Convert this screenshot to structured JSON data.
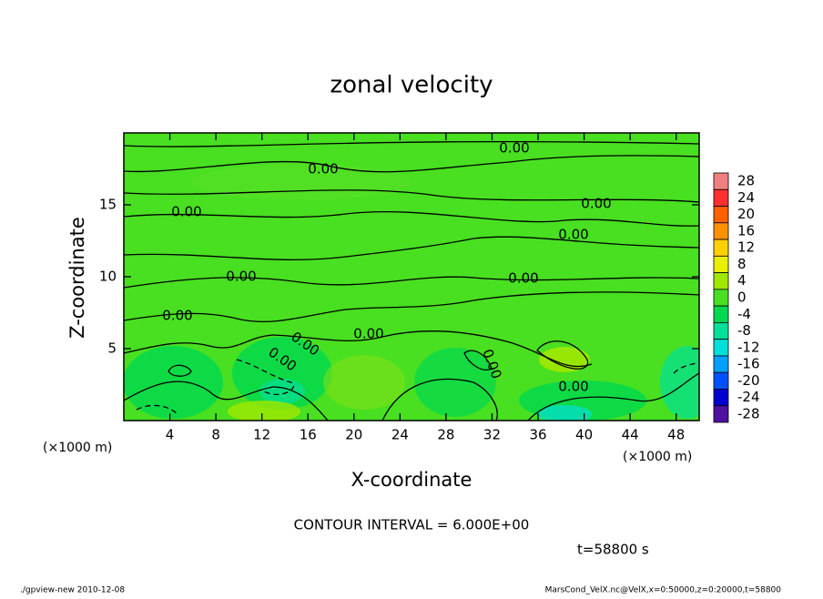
{
  "chart_data": {
    "type": "contour",
    "title": "zonal velocity",
    "xlabel": "X-coordinate",
    "ylabel": "Z-coordinate",
    "xunit": "(×1000 m)",
    "yunit": "(×1000 m)",
    "xlim": [
      0,
      50
    ],
    "ylim": [
      0,
      20
    ],
    "xticks": [
      4,
      8,
      12,
      16,
      20,
      24,
      28,
      32,
      36,
      40,
      44,
      48
    ],
    "yticks": [
      5,
      10,
      15
    ],
    "contour_label": "0.00",
    "contour_interval": "CONTOUR INTERVAL = 6.000E+00",
    "time": "t=58800 s",
    "footer_left": "./gpview-new  2010-12-08",
    "footer_right": "MarsCond_VelX.nc@VelX,x=0:50000,z=0:20000,t=58800",
    "colorbar": {
      "levels": [
        28,
        24,
        20,
        16,
        12,
        8,
        4,
        0,
        -4,
        -8,
        -12,
        -16,
        -20,
        -24,
        -28
      ],
      "colors": [
        "#f08080",
        "#ff3030",
        "#ff6000",
        "#ff9000",
        "#ffd000",
        "#e8f000",
        "#a0e800",
        "#48e020",
        "#00d850",
        "#00e098",
        "#00e0d8",
        "#00a0ff",
        "#0050ff",
        "#0000d0",
        "#5010a0"
      ]
    }
  }
}
